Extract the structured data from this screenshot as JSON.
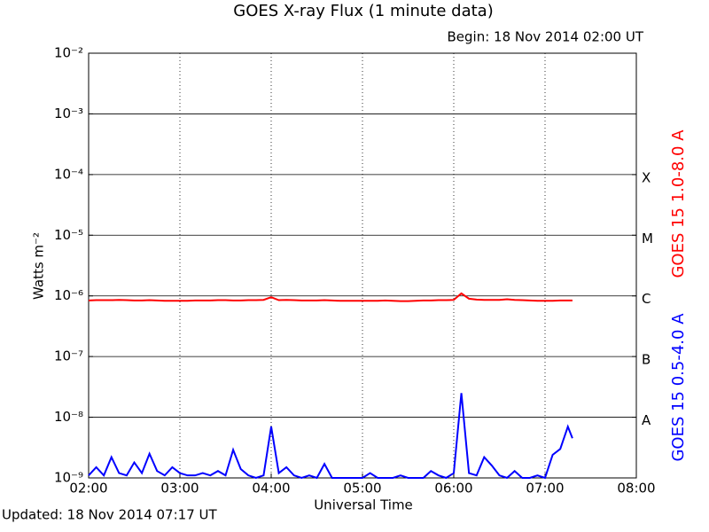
{
  "chart_data": {
    "type": "line",
    "title": "GOES X-ray Flux (1 minute data)",
    "subtitle": "Begin: 18 Nov 2014 02:00 UT",
    "footer": "Updated: 18 Nov 2014 07:17 UT",
    "xlabel": "Universal Time",
    "ylabel": "Watts m⁻²",
    "log_scale": true,
    "grid": true,
    "x": [
      "02:00",
      "02:05",
      "02:10",
      "02:15",
      "02:20",
      "02:25",
      "02:30",
      "02:35",
      "02:40",
      "02:45",
      "02:50",
      "02:55",
      "03:00",
      "03:05",
      "03:10",
      "03:15",
      "03:20",
      "03:25",
      "03:30",
      "03:35",
      "03:40",
      "03:45",
      "03:50",
      "03:55",
      "04:00",
      "04:05",
      "04:10",
      "04:15",
      "04:20",
      "04:25",
      "04:30",
      "04:35",
      "04:40",
      "04:45",
      "04:50",
      "04:55",
      "05:00",
      "05:05",
      "05:10",
      "05:15",
      "05:20",
      "05:25",
      "05:30",
      "05:35",
      "05:40",
      "05:45",
      "05:50",
      "05:55",
      "06:00",
      "06:05",
      "06:10",
      "06:15",
      "06:20",
      "06:25",
      "06:30",
      "06:35",
      "06:40",
      "06:45",
      "06:50",
      "06:55",
      "07:00",
      "07:05",
      "07:10",
      "07:15",
      "07:18"
    ],
    "series": [
      {
        "name": "GOES 15 1.0-8.0 A",
        "color": "#ff0000",
        "values": [
          8.4e-07,
          8.5e-07,
          8.5e-07,
          8.5e-07,
          8.6e-07,
          8.5e-07,
          8.4e-07,
          8.4e-07,
          8.5e-07,
          8.4e-07,
          8.3e-07,
          8.3e-07,
          8.3e-07,
          8.3e-07,
          8.4e-07,
          8.4e-07,
          8.4e-07,
          8.5e-07,
          8.5e-07,
          8.4e-07,
          8.4e-07,
          8.5e-07,
          8.5e-07,
          8.6e-07,
          9.5e-07,
          8.5e-07,
          8.6e-07,
          8.5e-07,
          8.4e-07,
          8.4e-07,
          8.4e-07,
          8.5e-07,
          8.4e-07,
          8.3e-07,
          8.3e-07,
          8.3e-07,
          8.3e-07,
          8.3e-07,
          8.3e-07,
          8.4e-07,
          8.3e-07,
          8.2e-07,
          8.2e-07,
          8.3e-07,
          8.4e-07,
          8.4e-07,
          8.5e-07,
          8.5e-07,
          8.6e-07,
          1.1e-06,
          9e-07,
          8.7e-07,
          8.6e-07,
          8.6e-07,
          8.6e-07,
          8.8e-07,
          8.6e-07,
          8.5e-07,
          8.4e-07,
          8.3e-07,
          8.3e-07,
          8.3e-07,
          8.4e-07,
          8.4e-07,
          8.4e-07
        ]
      },
      {
        "name": "GOES 15 0.5-4.0 A",
        "color": "#0000ff",
        "values": [
          1.1e-09,
          1.5e-09,
          1.1e-09,
          2.2e-09,
          1.2e-09,
          1.1e-09,
          1.8e-09,
          1.2e-09,
          2.5e-09,
          1.3e-09,
          1.1e-09,
          1.5e-09,
          1.2e-09,
          1.1e-09,
          1.1e-09,
          1.2e-09,
          1.1e-09,
          1.3e-09,
          1.1e-09,
          2.9e-09,
          1.4e-09,
          1.1e-09,
          1e-09,
          1.1e-09,
          7e-09,
          1.2e-09,
          1.5e-09,
          1.1e-09,
          1e-09,
          1.1e-09,
          1e-09,
          1.7e-09,
          1e-09,
          1e-09,
          1e-09,
          1e-09,
          1e-09,
          1.2e-09,
          1e-09,
          1e-09,
          1e-09,
          1.1e-09,
          1e-09,
          1e-09,
          1e-09,
          1.3e-09,
          1.1e-09,
          1e-09,
          1.2e-09,
          2.5e-08,
          1.2e-09,
          1.1e-09,
          2.2e-09,
          1.6e-09,
          1.1e-09,
          1e-09,
          1.3e-09,
          1e-09,
          1e-09,
          1.1e-09,
          1e-09,
          2.4e-09,
          3e-09,
          7e-09,
          4.5e-09
        ]
      }
    ],
    "xlim": [
      "02:00",
      "08:00"
    ],
    "xticks": [
      "02:00",
      "03:00",
      "04:00",
      "05:00",
      "06:00",
      "07:00",
      "08:00"
    ],
    "ylim": [
      1e-09,
      0.01
    ],
    "yticks": [
      {
        "value": 1e-09,
        "label": "10⁻⁹"
      },
      {
        "value": 1e-08,
        "label": "10⁻⁸"
      },
      {
        "value": 1e-07,
        "label": "10⁻⁷"
      },
      {
        "value": 1e-06,
        "label": "10⁻⁶"
      },
      {
        "value": 1e-05,
        "label": "10⁻⁵"
      },
      {
        "value": 0.0001,
        "label": "10⁻⁴"
      },
      {
        "value": 0.001,
        "label": "10⁻³"
      },
      {
        "value": 0.01,
        "label": "10⁻²"
      }
    ],
    "flare_classes": [
      {
        "value": 1e-08,
        "label": "A"
      },
      {
        "value": 1e-07,
        "label": "B"
      },
      {
        "value": 1e-06,
        "label": "C"
      },
      {
        "value": 1e-05,
        "label": "M"
      },
      {
        "value": 0.0001,
        "label": "X"
      }
    ]
  }
}
